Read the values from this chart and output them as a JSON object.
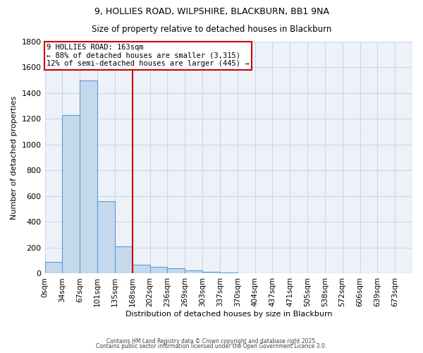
{
  "title_line1": "9, HOLLIES ROAD, WILPSHIRE, BLACKBURN, BB1 9NA",
  "title_line2": "Size of property relative to detached houses in Blackburn",
  "xlabel": "Distribution of detached houses by size in Blackburn",
  "ylabel": "Number of detached properties",
  "categories": [
    "0sqm",
    "34sqm",
    "67sqm",
    "101sqm",
    "135sqm",
    "168sqm",
    "202sqm",
    "236sqm",
    "269sqm",
    "303sqm",
    "337sqm",
    "370sqm",
    "404sqm",
    "437sqm",
    "471sqm",
    "505sqm",
    "538sqm",
    "572sqm",
    "606sqm",
    "639sqm",
    "673sqm"
  ],
  "values": [
    90,
    1230,
    1500,
    560,
    210,
    70,
    50,
    40,
    25,
    15,
    10,
    5,
    0,
    0,
    0,
    0,
    0,
    0,
    0,
    0,
    0
  ],
  "bar_color": "#c5d9ed",
  "bar_edge_color": "#5b9bd5",
  "grid_color": "#c8d8ea",
  "background_color": "#edf2f9",
  "vline_x": 5,
  "vline_color": "#cc0000",
  "annotation_text": "9 HOLLIES ROAD: 163sqm\n← 88% of detached houses are smaller (3,315)\n12% of semi-detached houses are larger (445) →",
  "annotation_box_facecolor": "#ffffff",
  "annotation_border_color": "#cc0000",
  "ylim": [
    0,
    1800
  ],
  "yticks": [
    0,
    200,
    400,
    600,
    800,
    1000,
    1200,
    1400,
    1600,
    1800
  ],
  "footer_line1": "Contains HM Land Registry data © Crown copyright and database right 2025.",
  "footer_line2": "Contains public sector information licensed under the Open Government Licence 3.0."
}
